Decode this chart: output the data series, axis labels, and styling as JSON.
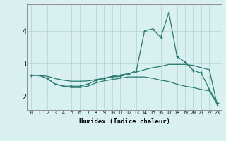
{
  "xlabel": "Humidex (Indice chaleur)",
  "x": [
    0,
    1,
    2,
    3,
    4,
    5,
    6,
    7,
    8,
    9,
    10,
    11,
    12,
    13,
    14,
    15,
    16,
    17,
    18,
    19,
    20,
    21,
    22,
    23
  ],
  "line_spike": [
    2.65,
    2.65,
    2.55,
    2.38,
    2.32,
    2.32,
    2.32,
    2.38,
    2.5,
    2.55,
    2.6,
    2.62,
    2.68,
    2.8,
    4.0,
    4.05,
    3.8,
    4.55,
    3.22,
    3.05,
    2.8,
    2.72,
    2.22,
    1.82
  ],
  "line_upper": [
    2.65,
    2.65,
    2.62,
    2.55,
    2.5,
    2.47,
    2.47,
    2.48,
    2.52,
    2.56,
    2.62,
    2.66,
    2.7,
    2.75,
    2.82,
    2.88,
    2.92,
    2.98,
    2.98,
    2.98,
    2.95,
    2.88,
    2.82,
    1.72
  ],
  "line_lower": [
    2.65,
    2.65,
    2.55,
    2.38,
    2.32,
    2.28,
    2.28,
    2.32,
    2.42,
    2.48,
    2.52,
    2.56,
    2.6,
    2.6,
    2.6,
    2.56,
    2.5,
    2.46,
    2.38,
    2.32,
    2.28,
    2.22,
    2.18,
    1.76
  ],
  "line_color": "#2a7a6f",
  "bg_color": "#d8f0f0",
  "grid_color": "#b0d4d4",
  "ylim": [
    1.6,
    4.8
  ],
  "xlim": [
    -0.5,
    23.5
  ],
  "yticks": [
    2,
    3,
    4
  ],
  "xticks": [
    0,
    1,
    2,
    3,
    4,
    5,
    6,
    7,
    8,
    9,
    10,
    11,
    12,
    13,
    14,
    15,
    16,
    17,
    18,
    19,
    20,
    21,
    22,
    23
  ]
}
